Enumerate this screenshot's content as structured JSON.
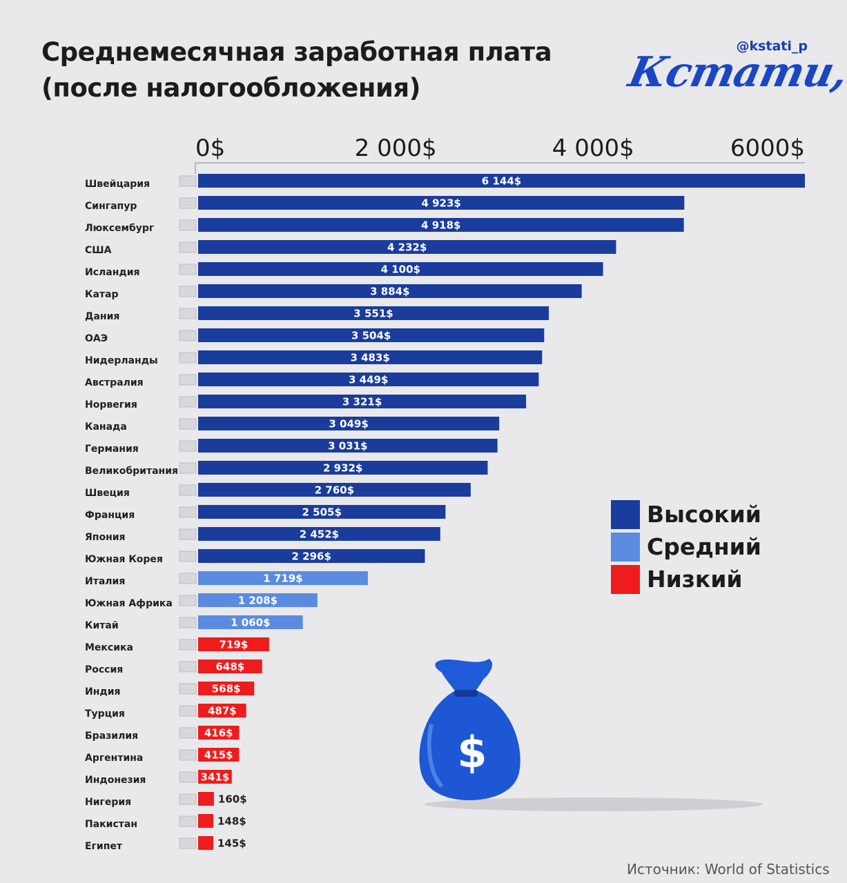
{
  "header": {
    "title_line1": "Среднемесячная заработная плата",
    "title_line2": "(после налогообложения)",
    "handle": "@kstati_p",
    "logo_text": "Кстати,"
  },
  "legend": [
    {
      "label": "Высокий",
      "color": "#1a3c9c"
    },
    {
      "label": "Средний",
      "color": "#5b8be0"
    },
    {
      "label": "Низкий",
      "color": "#ee1c1c"
    }
  ],
  "source": "Источник: World of Statistics",
  "icons": {
    "money_bag": "money-bag-icon",
    "dollar": "$"
  },
  "chart_data": {
    "type": "bar",
    "orientation": "horizontal",
    "x_ticks": [
      "0$",
      "2 000$",
      "4 000$",
      "6000$"
    ],
    "x_tick_values": [
      0,
      2000,
      4000,
      6000
    ],
    "xlim": [
      0,
      6144
    ],
    "categories": [
      "Швейцария",
      "Сингапур",
      "Люксембург",
      "США",
      "Исландия",
      "Катар",
      "Дания",
      "ОАЭ",
      "Нидерланды",
      "Австралия",
      "Норвегия",
      "Канада",
      "Германия",
      "Великобритания",
      "Швеция",
      "Франция",
      "Япония",
      "Южная Корея",
      "Италия",
      "Южная Африка",
      "Китай",
      "Мексика",
      "Россия",
      "Индия",
      "Турция",
      "Бразилия",
      "Аргентина",
      "Индонезия",
      "Нигерия",
      "Пакистан",
      "Египет"
    ],
    "values": [
      6144,
      4923,
      4918,
      4232,
      4100,
      3884,
      3551,
      3504,
      3483,
      3449,
      3321,
      3049,
      3031,
      2932,
      2760,
      2505,
      2452,
      2296,
      1719,
      1208,
      1060,
      719,
      648,
      568,
      487,
      416,
      415,
      341,
      160,
      148,
      145
    ],
    "value_labels": [
      "6 144$",
      "4 923$",
      "4 918$",
      "4 232$",
      "4 100$",
      "3 884$",
      "3 551$",
      "3 504$",
      "3 483$",
      "3 449$",
      "3 321$",
      "3 049$",
      "3 031$",
      "2 932$",
      "2 760$",
      "2 505$",
      "2 452$",
      "2 296$",
      "1 719$",
      "1 208$",
      "1 060$",
      "719$",
      "648$",
      "568$",
      "487$",
      "416$",
      "415$",
      "341$",
      "160$",
      "148$",
      "145$"
    ],
    "levels": [
      "high",
      "high",
      "high",
      "high",
      "high",
      "high",
      "high",
      "high",
      "high",
      "high",
      "high",
      "high",
      "high",
      "high",
      "high",
      "high",
      "high",
      "high",
      "medium",
      "medium",
      "medium",
      "low",
      "low",
      "low",
      "low",
      "low",
      "low",
      "low",
      "low",
      "low",
      "low"
    ],
    "level_colors": {
      "high": "#1a3c9c",
      "medium": "#5b8be0",
      "low": "#ee1c1c"
    }
  }
}
